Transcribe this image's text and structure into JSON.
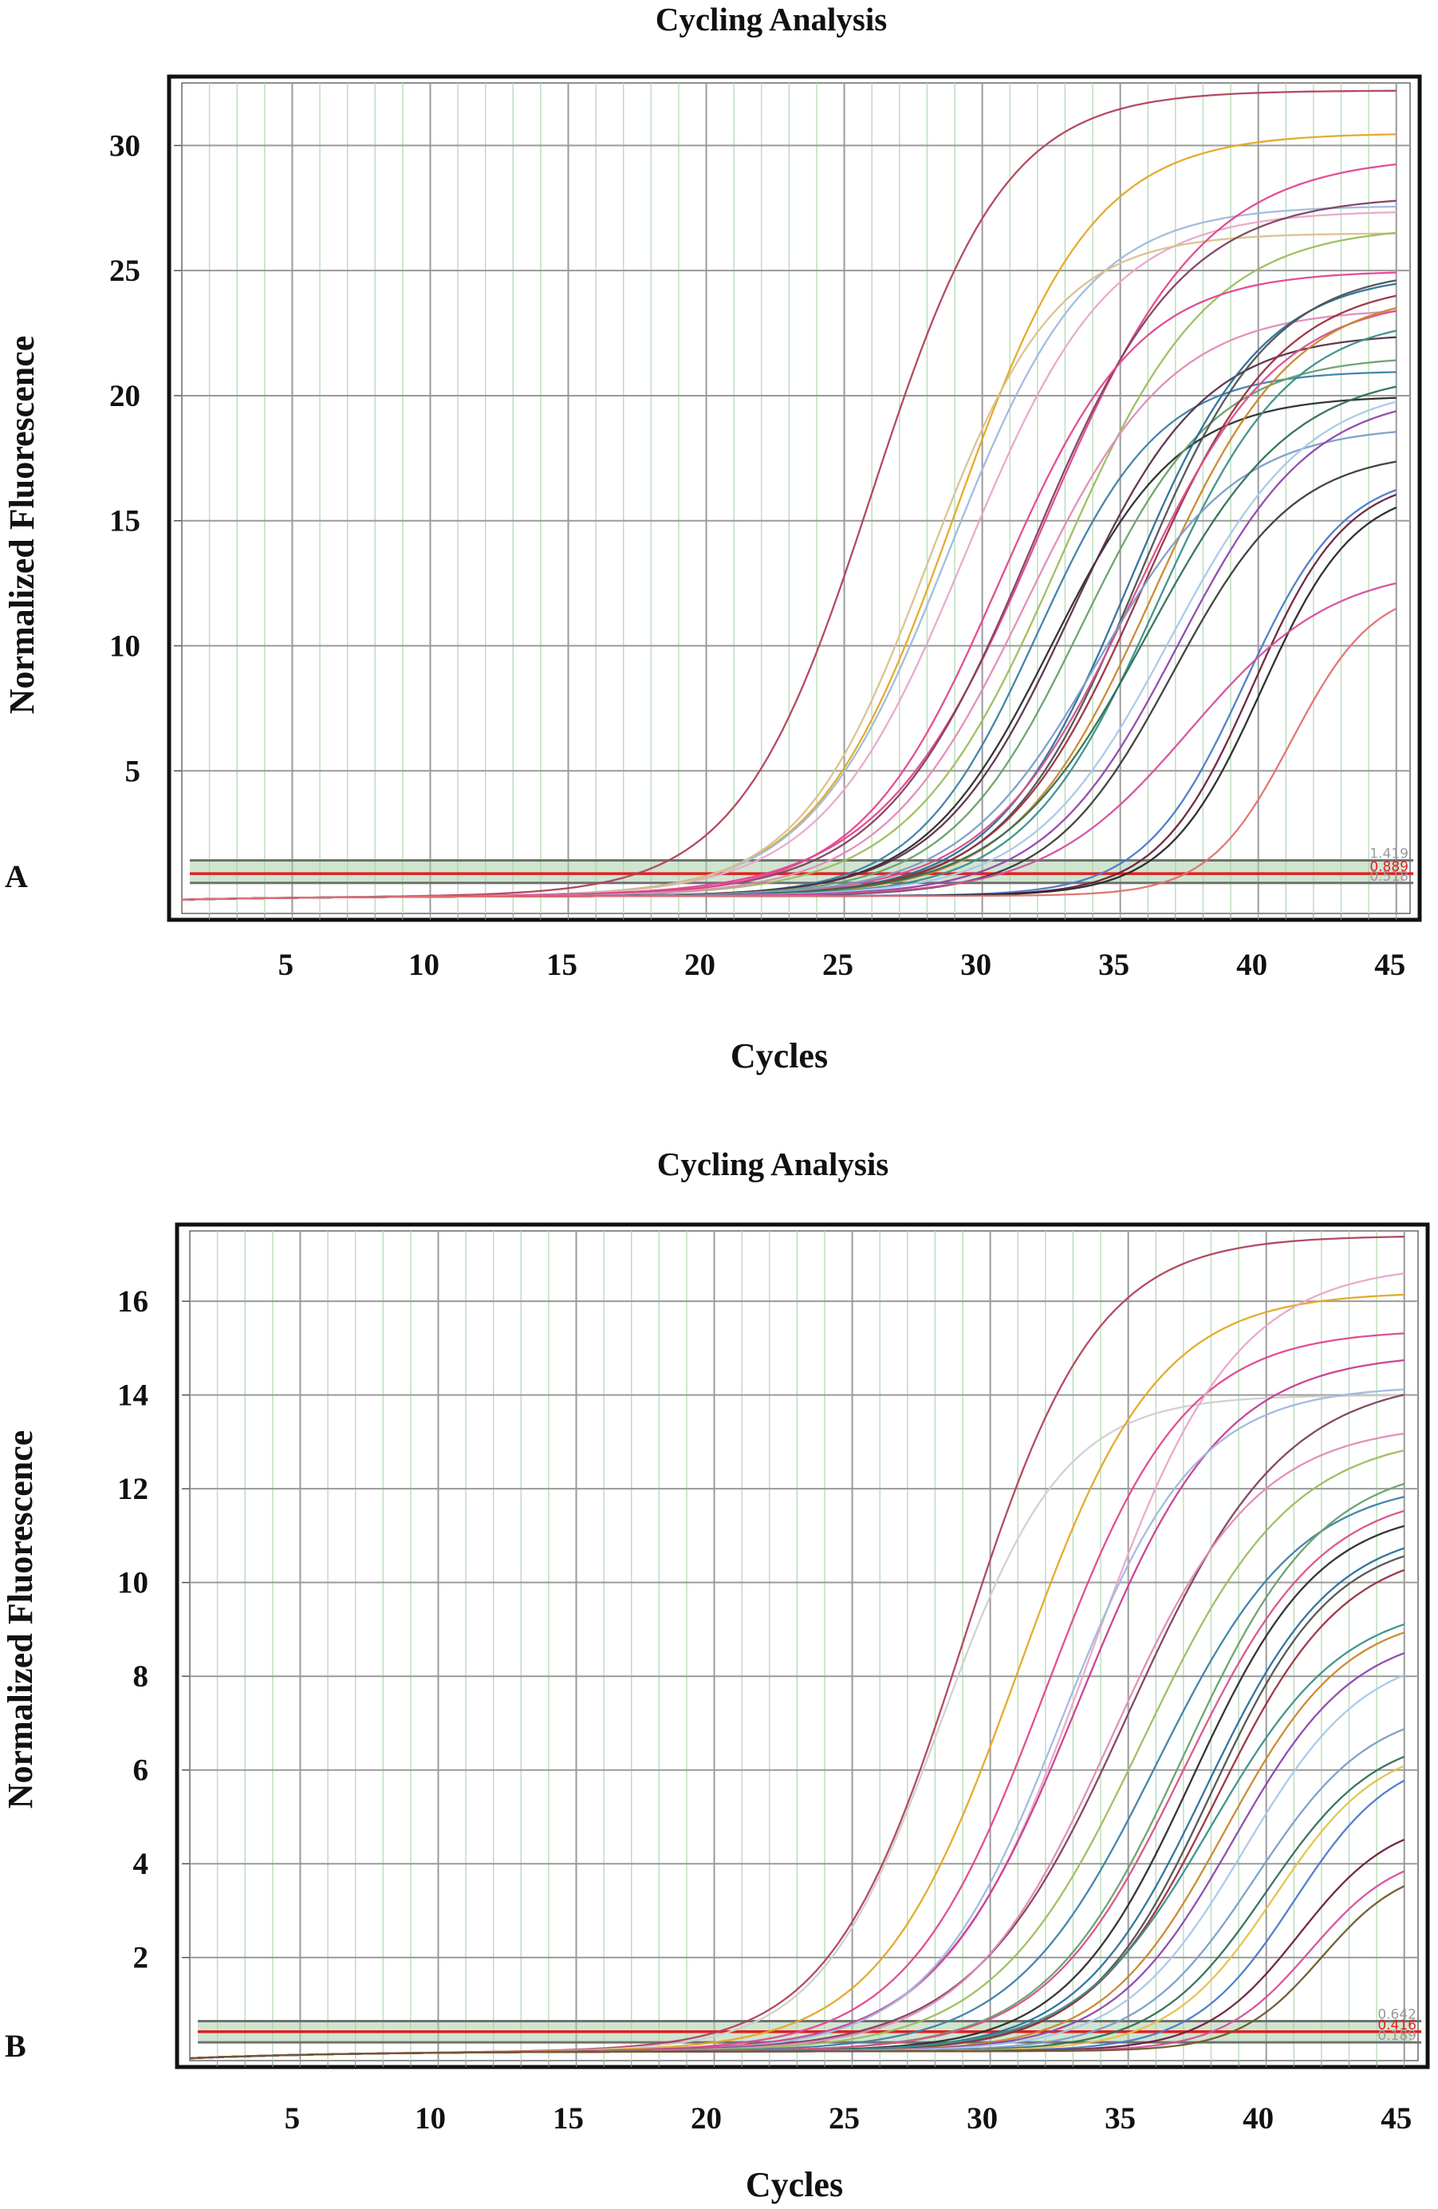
{
  "figure": {
    "panels": [
      {
        "panel_label": "A",
        "title": "Cycling Analysis",
        "xlabel": "Cycles",
        "ylabel": "Normalized Fluorescence",
        "threshold_labels": [
          "1.419",
          "0.889",
          "0.518"
        ]
      },
      {
        "panel_label": "B",
        "title": "Cycling Analysis",
        "xlabel": "Cycles",
        "ylabel": "Normalized Fluorescence",
        "threshold_labels": [
          "0.642",
          "0.416",
          "0.189"
        ]
      }
    ]
  },
  "colors": {
    "frame": "#111111",
    "major_grid": "#9a9a9a",
    "minor_grid": "#b9dcb9",
    "threshold_band": "#a9cfa9",
    "threshold_red": "#e02020",
    "threshold_gray": "#707070"
  },
  "chart_data": [
    {
      "type": "line",
      "title": "Cycling Analysis",
      "xlabel": "Cycles",
      "ylabel": "Normalized Fluorescence",
      "xlim": [
        1,
        45.5
      ],
      "ylim": [
        -0.7,
        32.5
      ],
      "xticks": [
        5,
        10,
        15,
        20,
        25,
        30,
        35,
        40,
        45
      ],
      "yticks": [
        5,
        10,
        15,
        20,
        25,
        30
      ],
      "grid": true,
      "thresholds": [
        0.518,
        0.889,
        1.419
      ],
      "curve_model": "plateau / (1 + exp(-(cycle - midpoint) / slope))",
      "series": [
        {
          "color": "#b0405a",
          "plateau": 32.2,
          "midpoint": 26.0,
          "slope": 2.4
        },
        {
          "color": "#e3a822",
          "plateau": 30.5,
          "midpoint": 29.0,
          "slope": 2.5
        },
        {
          "color": "#9fb8de",
          "plateau": 27.6,
          "midpoint": 28.8,
          "slope": 2.5
        },
        {
          "color": "#e8a6c9",
          "plateau": 27.4,
          "midpoint": 29.4,
          "slope": 2.6
        },
        {
          "color": "#d9c08c",
          "plateau": 26.5,
          "midpoint": 28.0,
          "slope": 2.3
        },
        {
          "color": "#e2458f",
          "plateau": 29.6,
          "midpoint": 32.2,
          "slope": 2.9
        },
        {
          "color": "#7f3f5c",
          "plateau": 28.0,
          "midpoint": 31.8,
          "slope": 2.7
        },
        {
          "color": "#9bbd5c",
          "plateau": 26.8,
          "midpoint": 32.8,
          "slope": 2.7
        },
        {
          "color": "#e2458f",
          "plateau": 25.0,
          "midpoint": 30.6,
          "slope": 2.5
        },
        {
          "color": "#e08ab8",
          "plateau": 23.5,
          "midpoint": 31.6,
          "slope": 2.6
        },
        {
          "color": "#3c7fa8",
          "plateau": 21.0,
          "midpoint": 32.0,
          "slope": 2.2
        },
        {
          "color": "#2b2b2b",
          "plateau": 20.0,
          "midpoint": 32.5,
          "slope": 2.3
        },
        {
          "color": "#5b2e4a",
          "plateau": 22.5,
          "midpoint": 33.2,
          "slope": 2.4
        },
        {
          "color": "#67a06a",
          "plateau": 21.6,
          "midpoint": 33.6,
          "slope": 2.4
        },
        {
          "color": "#2a6f9a",
          "plateau": 24.9,
          "midpoint": 35.3,
          "slope": 2.4
        },
        {
          "color": "#505050",
          "plateau": 25.1,
          "midpoint": 35.6,
          "slope": 2.4
        },
        {
          "color": "#9a2f3f",
          "plateau": 24.6,
          "midpoint": 35.8,
          "slope": 2.5
        },
        {
          "color": "#d94f8b",
          "plateau": 24.0,
          "midpoint": 35.5,
          "slope": 2.6
        },
        {
          "color": "#c9862c",
          "plateau": 24.2,
          "midpoint": 36.2,
          "slope": 2.5
        },
        {
          "color": "#3a8f8a",
          "plateau": 23.2,
          "midpoint": 36.3,
          "slope": 2.4
        },
        {
          "color": "#7a9cc8",
          "plateau": 18.8,
          "midpoint": 34.2,
          "slope": 2.5
        },
        {
          "color": "#2f6f55",
          "plateau": 21.0,
          "midpoint": 36.0,
          "slope": 2.6
        },
        {
          "color": "#a8c7e8",
          "plateau": 20.5,
          "midpoint": 36.8,
          "slope": 2.5
        },
        {
          "color": "#8e44ad",
          "plateau": 20.1,
          "midpoint": 37.1,
          "slope": 2.4
        },
        {
          "color": "#3a3a3a",
          "plateau": 17.8,
          "midpoint": 36.9,
          "slope": 2.2
        },
        {
          "color": "#4a79c9",
          "plateau": 17.0,
          "midpoint": 39.5,
          "slope": 1.8
        },
        {
          "color": "#6a1f3a",
          "plateau": 16.8,
          "midpoint": 39.8,
          "slope": 1.7
        },
        {
          "color": "#262626",
          "plateau": 16.4,
          "midpoint": 40.1,
          "slope": 1.7
        },
        {
          "color": "#d44f9c",
          "plateau": 13.2,
          "midpoint": 37.5,
          "slope": 2.6
        },
        {
          "color": "#e07070",
          "plateau": 12.4,
          "midpoint": 41.2,
          "slope": 1.5
        }
      ]
    },
    {
      "type": "line",
      "title": "Cycling Analysis",
      "xlabel": "Cycles",
      "ylabel": "Normalized Fluorescence",
      "xlim": [
        1,
        45.5
      ],
      "ylim": [
        -0.2,
        17.5
      ],
      "xticks": [
        5,
        10,
        15,
        20,
        25,
        30,
        35,
        40,
        45
      ],
      "yticks": [
        2,
        4,
        6,
        8,
        10,
        12,
        14,
        16
      ],
      "grid": true,
      "thresholds": [
        0.189,
        0.416,
        0.642
      ],
      "curve_model": "plateau / (1 + exp(-(cycle - midpoint) / slope))",
      "series": [
        {
          "color": "#b0405a",
          "plateau": 17.4,
          "midpoint": 29.0,
          "slope": 2.4
        },
        {
          "color": "#cfcfcf",
          "plateau": 14.0,
          "midpoint": 28.2,
          "slope": 2.2
        },
        {
          "color": "#e3a822",
          "plateau": 16.2,
          "midpoint": 31.0,
          "slope": 2.5
        },
        {
          "color": "#e2458f",
          "plateau": 15.4,
          "midpoint": 32.0,
          "slope": 2.5
        },
        {
          "color": "#e8a6c9",
          "plateau": 16.8,
          "midpoint": 33.6,
          "slope": 2.6
        },
        {
          "color": "#c83c8f",
          "plateau": 14.9,
          "midpoint": 33.2,
          "slope": 2.6
        },
        {
          "color": "#9fb8de",
          "plateau": 14.2,
          "midpoint": 32.6,
          "slope": 2.4
        },
        {
          "color": "#7f3f5c",
          "plateau": 14.4,
          "midpoint": 35.0,
          "slope": 2.8
        },
        {
          "color": "#e08ab8",
          "plateau": 13.4,
          "midpoint": 34.4,
          "slope": 2.6
        },
        {
          "color": "#9bbd5c",
          "plateau": 13.2,
          "midpoint": 35.5,
          "slope": 2.7
        },
        {
          "color": "#3c7fa8",
          "plateau": 12.2,
          "midpoint": 36.0,
          "slope": 2.6
        },
        {
          "color": "#67a06a",
          "plateau": 12.6,
          "midpoint": 37.0,
          "slope": 2.5
        },
        {
          "color": "#2b2b2b",
          "plateau": 11.6,
          "midpoint": 37.3,
          "slope": 2.3
        },
        {
          "color": "#d94f8b",
          "plateau": 12.0,
          "midpoint": 37.0,
          "slope": 2.5
        },
        {
          "color": "#2a6f9a",
          "plateau": 11.2,
          "midpoint": 37.8,
          "slope": 2.3
        },
        {
          "color": "#505050",
          "plateau": 11.0,
          "midpoint": 38.0,
          "slope": 2.2
        },
        {
          "color": "#9a2f3f",
          "plateau": 10.8,
          "midpoint": 38.2,
          "slope": 2.3
        },
        {
          "color": "#c9862c",
          "plateau": 9.4,
          "midpoint": 38.5,
          "slope": 2.2
        },
        {
          "color": "#3a8f8a",
          "plateau": 9.6,
          "midpoint": 38.0,
          "slope": 2.4
        },
        {
          "color": "#8e44ad",
          "plateau": 9.0,
          "midpoint": 38.8,
          "slope": 2.2
        },
        {
          "color": "#a8c7e8",
          "plateau": 8.6,
          "midpoint": 39.2,
          "slope": 2.2
        },
        {
          "color": "#7a9cc8",
          "plateau": 7.4,
          "midpoint": 39.6,
          "slope": 2.1
        },
        {
          "color": "#2f6f55",
          "plateau": 6.8,
          "midpoint": 40.0,
          "slope": 2.0
        },
        {
          "color": "#e3c24a",
          "plateau": 6.6,
          "midpoint": 40.3,
          "slope": 1.9
        },
        {
          "color": "#4a79c9",
          "plateau": 6.4,
          "midpoint": 41.0,
          "slope": 1.8
        },
        {
          "color": "#6a1f3a",
          "plateau": 5.0,
          "midpoint": 41.2,
          "slope": 1.7
        },
        {
          "color": "#d44f9c",
          "plateau": 4.3,
          "midpoint": 41.6,
          "slope": 1.6
        },
        {
          "color": "#6b5a2a",
          "plateau": 4.0,
          "midpoint": 42.0,
          "slope": 1.5
        }
      ]
    }
  ]
}
